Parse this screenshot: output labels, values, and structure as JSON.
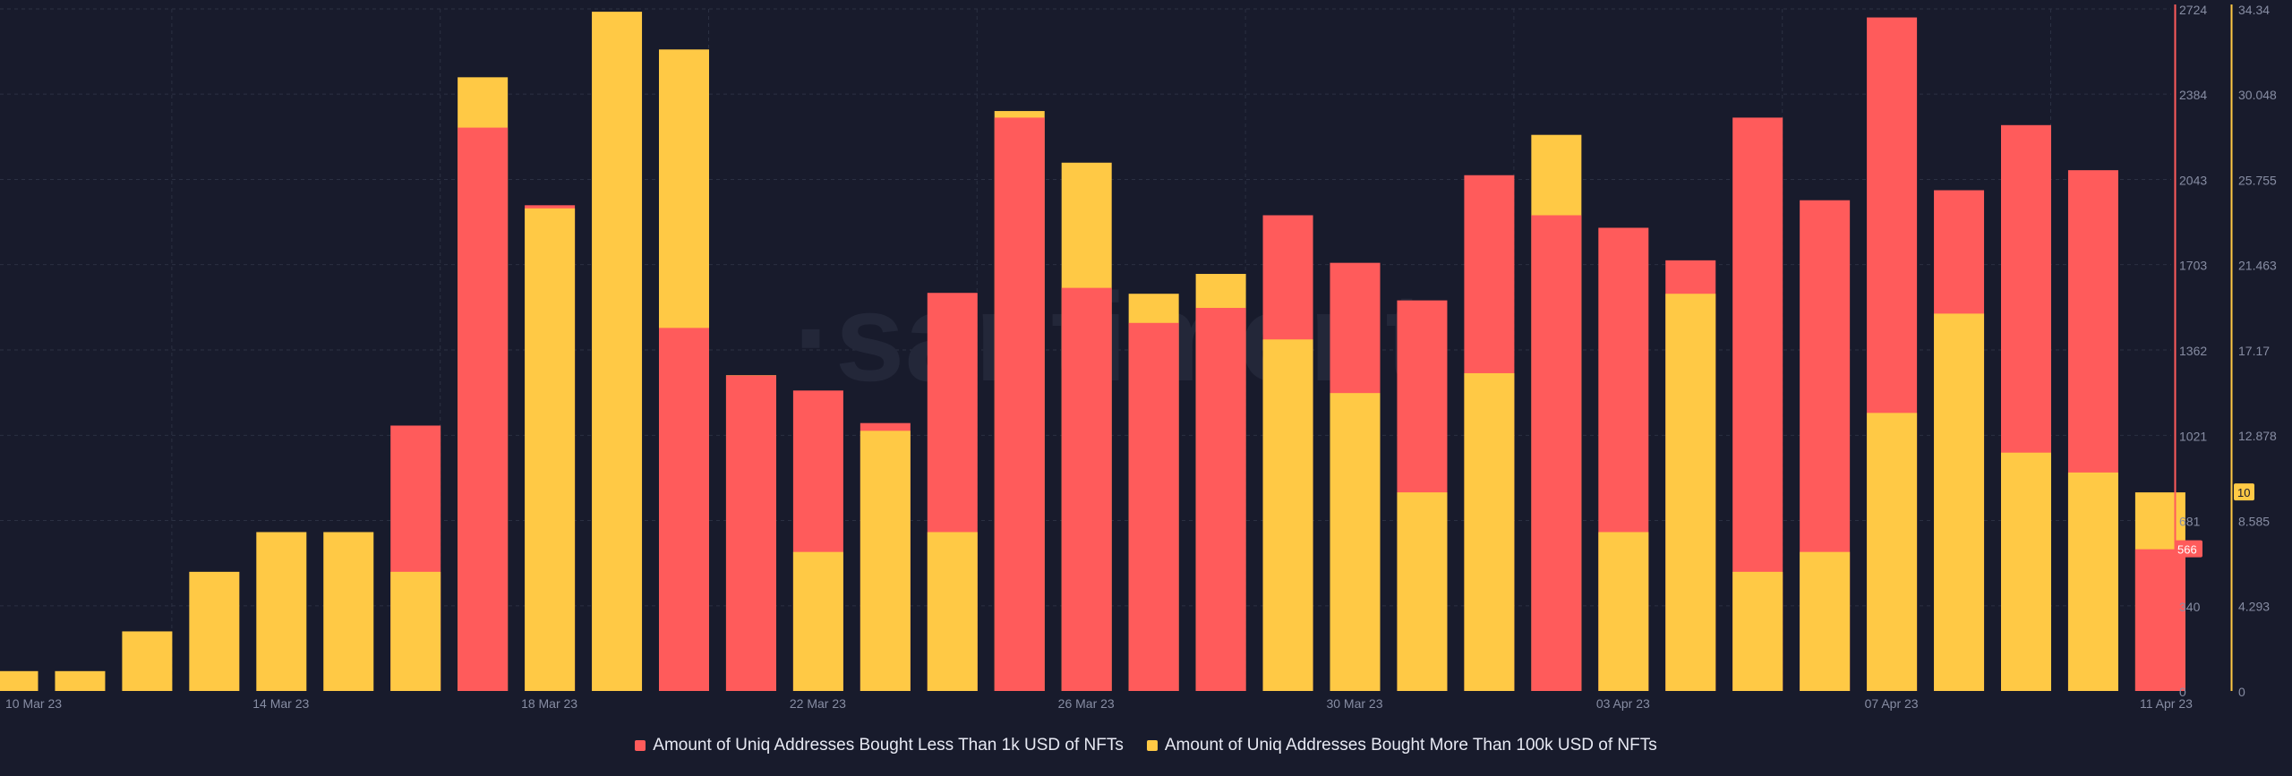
{
  "colors": {
    "background": "#181b2c",
    "red": "#ff5b5b",
    "yellow": "#ffc945",
    "grid": "#2b3042",
    "axis_text": "#878da3",
    "left_axis_line": "#ff5b5b",
    "right_axis_line": "#ffc945",
    "watermark": "#232739"
  },
  "watermark": "·santiment",
  "chart_data": {
    "type": "bar",
    "stacked": true,
    "categories": [
      "10 Mar 23",
      "11 Mar 23",
      "12 Mar 23",
      "13 Mar 23",
      "14 Mar 23",
      "15 Mar 23",
      "16 Mar 23",
      "17 Mar 23",
      "18 Mar 23",
      "19 Mar 23",
      "20 Mar 23",
      "21 Mar 23",
      "22 Mar 23",
      "23 Mar 23",
      "24 Mar 23",
      "25 Mar 23",
      "26 Mar 23",
      "27 Mar 23",
      "28 Mar 23",
      "29 Mar 23",
      "30 Mar 23",
      "31 Mar 23",
      "01 Apr 23",
      "02 Apr 23",
      "03 Apr 23",
      "04 Apr 23",
      "05 Apr 23",
      "06 Apr 23",
      "07 Apr 23",
      "08 Apr 23",
      "09 Apr 23",
      "10 Apr 23",
      "11 Apr 23"
    ],
    "x_tick_labels": [
      "10 Mar 23",
      "14 Mar 23",
      "18 Mar 23",
      "22 Mar 23",
      "26 Mar 23",
      "30 Mar 23",
      "03 Apr 23",
      "07 Apr 23",
      "11 Apr 23"
    ],
    "series": [
      {
        "name": "Amount of Uniq Addresses Bought Less Than 1k USD of NFTs",
        "color": "#ff5b5b",
        "axis": "left",
        "values": [
          0,
          0,
          0,
          0,
          0,
          0,
          1060,
          2250,
          1940,
          0,
          1450,
          1260,
          1200,
          1070,
          1590,
          2290,
          1610,
          1470,
          1530,
          1900,
          1710,
          1560,
          2060,
          1900,
          1850,
          1720,
          2290,
          1960,
          2690,
          2000,
          2260,
          2080,
          566
        ]
      },
      {
        "name": "Amount of Uniq Addresses Bought More Than 100k USD of NFTs",
        "color": "#ffc945",
        "axis": "right",
        "values": [
          1,
          1,
          3,
          6,
          8,
          8,
          6,
          30.9,
          24.3,
          34.2,
          32.3,
          15.9,
          7,
          13.1,
          8,
          29.2,
          26.6,
          20,
          21,
          17.7,
          15,
          10,
          16,
          28,
          8,
          20,
          6,
          7,
          14,
          19,
          12,
          11,
          10
        ]
      }
    ],
    "left_axis": {
      "min": 0,
      "max": 2724,
      "ticks": [
        "0",
        "340",
        "681",
        "1021",
        "1362",
        "1703",
        "2043",
        "2384",
        "2724"
      ]
    },
    "right_axis": {
      "min": 0,
      "max": 34.34,
      "ticks": [
        "0",
        "4.293",
        "8.585",
        "12.878",
        "17.17",
        "21.463",
        "25.755",
        "30.048",
        "34.34"
      ]
    },
    "left_badge": "566",
    "right_badge": "10",
    "grid": true,
    "legend_position": "bottom-center"
  }
}
